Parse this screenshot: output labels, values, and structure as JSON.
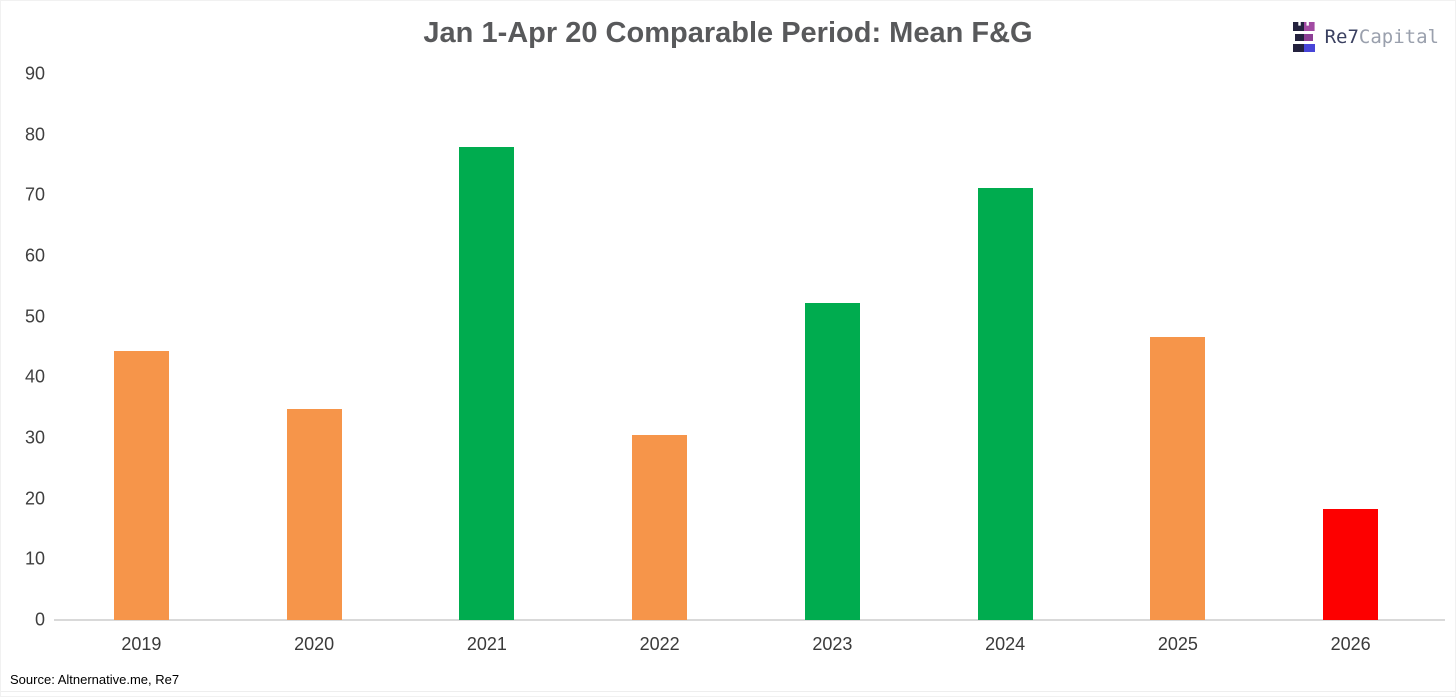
{
  "header": {
    "title": "Jan 1-Apr 20 Comparable Period: Mean F&G",
    "logo": {
      "brand_primary": "Re7",
      "brand_secondary": "Capital",
      "icon": "re7-three-bars-crown-icon"
    }
  },
  "footer": {
    "source": "Source: Altnernative.me, Re7"
  },
  "colors": {
    "orange": "#f6954a",
    "green": "#00ac4f",
    "red": "#fd0000",
    "axis_line": "#d9d9d9",
    "title_text": "#58595b",
    "tick_text": "#3f3f3f",
    "logo_primary": "#3a4060",
    "logo_secondary": "#9aa0ad",
    "logo_icon_left": "#24223e",
    "logo_icon_top_right": "#a24ba3",
    "logo_icon_mid_right": "#8c3f95",
    "logo_icon_bottom_right": "#4845d8"
  },
  "chart_data": {
    "type": "bar",
    "title": "Jan 1-Apr 20 Comparable Period: Mean F&G",
    "categories": [
      "2019",
      "2020",
      "2021",
      "2022",
      "2023",
      "2024",
      "2025",
      "2026"
    ],
    "values": [
      44.3,
      34.8,
      78.0,
      30.5,
      52.3,
      71.2,
      46.7,
      18.3
    ],
    "bar_color_keys": [
      "orange",
      "orange",
      "green",
      "orange",
      "green",
      "green",
      "orange",
      "red"
    ],
    "xlabel": "",
    "ylabel": "",
    "ylim": [
      0,
      90
    ],
    "yticks": [
      0,
      10,
      20,
      30,
      40,
      50,
      60,
      70,
      80,
      90
    ],
    "grid": false,
    "legend": false,
    "source": "Source: Altnernative.me, Re7"
  }
}
